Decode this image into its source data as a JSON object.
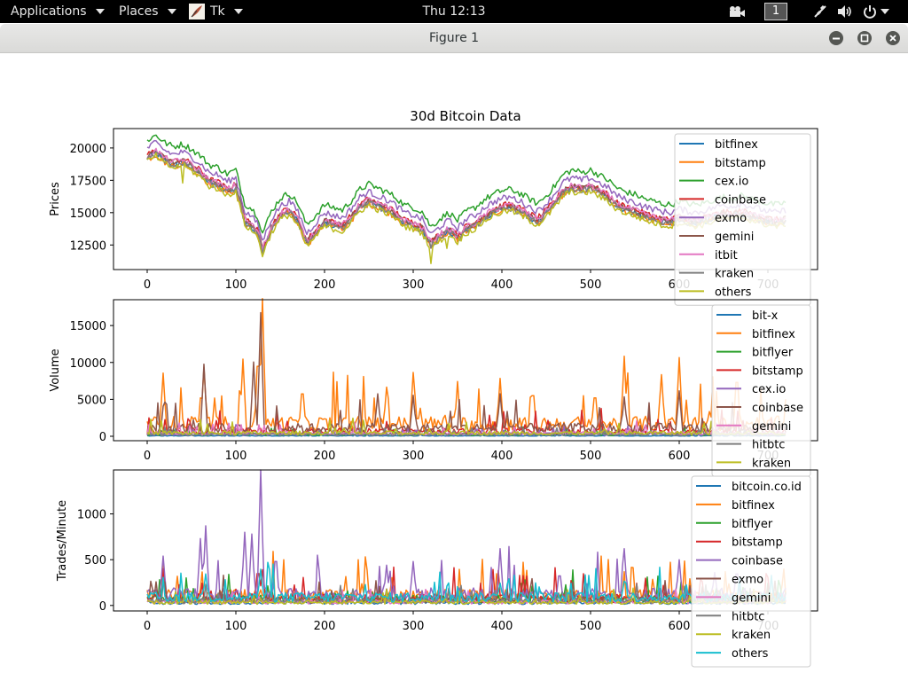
{
  "topbar": {
    "applications_label": "Applications",
    "places_label": "Places",
    "tk_label": "Tk",
    "clock": "Thu 12:13",
    "workspace": "1"
  },
  "window": {
    "title": "Figure 1"
  },
  "chart_data": [
    {
      "type": "line",
      "title": "30d Bitcoin Data",
      "ylabel": "Prices",
      "xlim": [
        -38,
        756
      ],
      "ylim": [
        10600,
        21500
      ],
      "xticks": [
        0,
        100,
        200,
        300,
        400,
        500,
        600,
        700
      ],
      "yticks": [
        12500,
        15000,
        17500,
        20000
      ],
      "ytick_labels": [
        "12500",
        "15000",
        "17500",
        "20000"
      ],
      "legend": "right",
      "series": [
        {
          "name": "bitfinex",
          "color": "#1f77b4"
        },
        {
          "name": "bitstamp",
          "color": "#ff7f0e"
        },
        {
          "name": "cex.io",
          "color": "#2ca02c"
        },
        {
          "name": "coinbase",
          "color": "#d62728"
        },
        {
          "name": "exmo",
          "color": "#9467bd"
        },
        {
          "name": "gemini",
          "color": "#8c564b"
        },
        {
          "name": "itbit",
          "color": "#e377c2"
        },
        {
          "name": "kraken",
          "color": "#7f7f7f"
        },
        {
          "name": "others",
          "color": "#bcbd22"
        }
      ],
      "base": {
        "x": [
          0,
          10,
          20,
          30,
          40,
          50,
          60,
          70,
          80,
          90,
          100,
          110,
          118,
          125,
          130,
          140,
          150,
          160,
          170,
          180,
          190,
          200,
          210,
          220,
          230,
          240,
          250,
          260,
          270,
          280,
          290,
          300,
          310,
          320,
          330,
          340,
          350,
          360,
          370,
          380,
          390,
          400,
          410,
          420,
          430,
          440,
          450,
          460,
          470,
          480,
          490,
          500,
          510,
          520,
          530,
          540,
          550,
          560,
          570,
          580,
          590,
          600,
          610,
          620,
          630,
          640,
          650,
          660,
          670,
          680,
          690,
          700,
          710,
          720
        ],
        "y": [
          19200,
          19600,
          19000,
          18700,
          18900,
          18500,
          18000,
          17300,
          17100,
          16600,
          16900,
          14300,
          13900,
          13300,
          12000,
          13700,
          14700,
          15100,
          14300,
          12600,
          13400,
          14200,
          14000,
          13800,
          14500,
          15400,
          15800,
          15500,
          15200,
          14800,
          14200,
          14000,
          13700,
          12500,
          13100,
          13600,
          13000,
          13700,
          14000,
          14600,
          15000,
          15300,
          15400,
          15100,
          14700,
          14300,
          14900,
          15700,
          16600,
          16900,
          16700,
          16900,
          16500,
          16100,
          15500,
          15200,
          15000,
          14700,
          14500,
          14300,
          14200,
          14500,
          14300,
          14200,
          14400,
          14600,
          14800,
          14700,
          14900,
          14700,
          14500,
          14300,
          14200,
          14400
        ]
      },
      "offsets": {
        "bitfinex": 0,
        "bitstamp": -100,
        "cex.io": 1400,
        "coinbase": 250,
        "exmo": 800,
        "gemini": 150,
        "itbit": 200,
        "kraken": -50,
        "others": -250
      }
    },
    {
      "type": "line",
      "ylabel": "Volume",
      "xlim": [
        -38,
        756
      ],
      "ylim": [
        -600,
        18500
      ],
      "xticks": [
        0,
        100,
        200,
        300,
        400,
        500,
        600,
        700
      ],
      "yticks": [
        0,
        5000,
        10000,
        15000
      ],
      "ytick_labels": [
        "0",
        "5000",
        "10000",
        "15000"
      ],
      "legend": "right",
      "series": [
        {
          "name": "bit-x",
          "color": "#1f77b4"
        },
        {
          "name": "bitfinex",
          "color": "#ff7f0e"
        },
        {
          "name": "bitflyer",
          "color": "#2ca02c"
        },
        {
          "name": "bitstamp",
          "color": "#d62728"
        },
        {
          "name": "cex.io",
          "color": "#9467bd"
        },
        {
          "name": "coinbase",
          "color": "#8c564b"
        },
        {
          "name": "gemini",
          "color": "#e377c2"
        },
        {
          "name": "hitbtc",
          "color": "#7f7f7f"
        },
        {
          "name": "kraken",
          "color": "#bcbd22"
        }
      ],
      "peaks": {
        "bitfinex": [
          [
            18,
            7700
          ],
          [
            64,
            8500
          ],
          [
            108,
            9600
          ],
          [
            125,
            11500
          ],
          [
            130,
            17800
          ],
          [
            175,
            6500
          ],
          [
            270,
            5800
          ],
          [
            300,
            7800
          ],
          [
            350,
            6000
          ],
          [
            398,
            7000
          ],
          [
            435,
            6200
          ],
          [
            505,
            5800
          ],
          [
            538,
            10000
          ],
          [
            580,
            7500
          ],
          [
            600,
            9800
          ],
          [
            665,
            8600
          ]
        ],
        "coinbase": [
          [
            64,
            9200
          ],
          [
            120,
            9500
          ],
          [
            128,
            16200
          ],
          [
            260,
            5200
          ],
          [
            300,
            5000
          ],
          [
            398,
            5200
          ],
          [
            538,
            4800
          ],
          [
            600,
            5600
          ]
        ]
      },
      "baselines": {
        "bit-x": 60,
        "bitfinex": 1700,
        "bitflyer": 250,
        "bitstamp": 700,
        "cex.io": 300,
        "coinbase": 1100,
        "gemini": 400,
        "hitbtc": 250,
        "kraken": 450
      }
    },
    {
      "type": "line",
      "ylabel": "Trades/Minute",
      "xlim": [
        -38,
        756
      ],
      "ylim": [
        -60,
        1480
      ],
      "xticks": [
        0,
        100,
        200,
        300,
        400,
        500,
        600,
        700
      ],
      "yticks": [
        0,
        500,
        1000
      ],
      "ytick_labels": [
        "0",
        "500",
        "1000"
      ],
      "legend": "right",
      "series": [
        {
          "name": "bitcoin.co.id",
          "color": "#1f77b4"
        },
        {
          "name": "bitfinex",
          "color": "#ff7f0e"
        },
        {
          "name": "bitflyer",
          "color": "#2ca02c"
        },
        {
          "name": "bitstamp",
          "color": "#d62728"
        },
        {
          "name": "coinbase",
          "color": "#9467bd"
        },
        {
          "name": "exmo",
          "color": "#8c564b"
        },
        {
          "name": "gemini",
          "color": "#e377c2"
        },
        {
          "name": "hitbtc",
          "color": "#7f7f7f"
        },
        {
          "name": "kraken",
          "color": "#bcbd22"
        },
        {
          "name": "others",
          "color": "#17becf"
        }
      ],
      "peaks": {
        "coinbase": [
          [
            18,
            480
          ],
          [
            60,
            670
          ],
          [
            66,
            810
          ],
          [
            110,
            740
          ],
          [
            118,
            720
          ],
          [
            128,
            1420
          ],
          [
            145,
            560
          ],
          [
            270,
            380
          ],
          [
            300,
            420
          ],
          [
            398,
            560
          ],
          [
            465,
            350
          ],
          [
            538,
            560
          ],
          [
            600,
            440
          ],
          [
            640,
            300
          ],
          [
            665,
            380
          ]
        ],
        "bitstamp": [
          [
            125,
            410
          ],
          [
            130,
            350
          ]
        ],
        "others": [
          [
            66,
            300
          ],
          [
            128,
            350
          ],
          [
            398,
            200
          ],
          [
            538,
            220
          ]
        ]
      },
      "baselines": {
        "bitcoin.co.id": 30,
        "bitfinex": 110,
        "bitflyer": 70,
        "bitstamp": 80,
        "coinbase": 120,
        "exmo": 60,
        "gemini": 40,
        "hitbtc": 50,
        "kraken": 35,
        "others": 90
      }
    }
  ]
}
